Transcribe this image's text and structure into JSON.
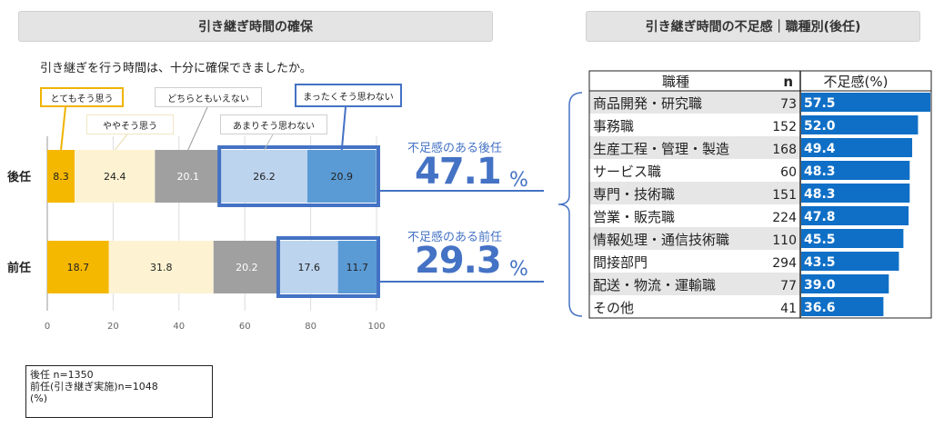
{
  "left_panel": {
    "header": "引き継ぎ時間の確保",
    "question": "引き継ぎを行う時間は、十分に確保できましたか。",
    "legend": [
      "とてもそう思う",
      "ややそう思う",
      "どちらともいえない",
      "あまりそう思わない",
      "まったくそう思わない"
    ],
    "note": [
      "後任 n=1350",
      "前任(引き継ぎ実施)n=1048",
      "(%)"
    ],
    "callouts": [
      {
        "label": "不足感のある後任",
        "value": "47.1",
        "unit": "%"
      },
      {
        "label": "不足感のある前任",
        "value": "29.3",
        "unit": "%"
      }
    ]
  },
  "right_panel": {
    "header": "引き継ぎ時間の不足感｜職種別(後任)",
    "col_headers": [
      "職種",
      "n",
      "不足感(%)"
    ]
  },
  "chart_data": [
    {
      "type": "bar",
      "orientation": "horizontal",
      "stacked": true,
      "categories": [
        "後任",
        "前任"
      ],
      "series": [
        {
          "name": "とてもそう思う",
          "values": [
            8.3,
            18.7
          ]
        },
        {
          "name": "ややそう思う",
          "values": [
            24.4,
            31.8
          ]
        },
        {
          "name": "どちらともいえない",
          "values": [
            20.1,
            20.2
          ]
        },
        {
          "name": "あまりそう思わない",
          "values": [
            26.2,
            17.6
          ]
        },
        {
          "name": "まったくそう思わない",
          "values": [
            20.9,
            11.7
          ]
        }
      ],
      "xlim": [
        0,
        100
      ],
      "xticks": [
        "0",
        "20",
        "40",
        "60",
        "80",
        "100"
      ],
      "colors": [
        "#f5b800",
        "#fdf3d2",
        "#a0a0a0",
        "#bdd4ef",
        "#5b9bd5"
      ]
    },
    {
      "type": "bar",
      "orientation": "horizontal",
      "categories": [
        "商品開発・研究職",
        "事務職",
        "生産工程・管理・製造",
        "サービス職",
        "専門・技術職",
        "営業・販売職",
        "情報処理・通信技術職",
        "間接部門",
        "配送・物流・運輸職",
        "その他"
      ],
      "n": [
        73,
        152,
        168,
        60,
        151,
        224,
        110,
        294,
        77,
        41
      ],
      "values": [
        57.5,
        52.0,
        49.4,
        48.3,
        48.3,
        47.8,
        45.5,
        43.5,
        39.0,
        36.6
      ],
      "value_labels": [
        "57.5",
        "52.0",
        "49.4",
        "48.3",
        "48.3",
        "47.8",
        "45.5",
        "43.5",
        "39.0",
        "36.6"
      ],
      "xlim": [
        0,
        57.5
      ],
      "color": "#0f6fc6"
    }
  ]
}
